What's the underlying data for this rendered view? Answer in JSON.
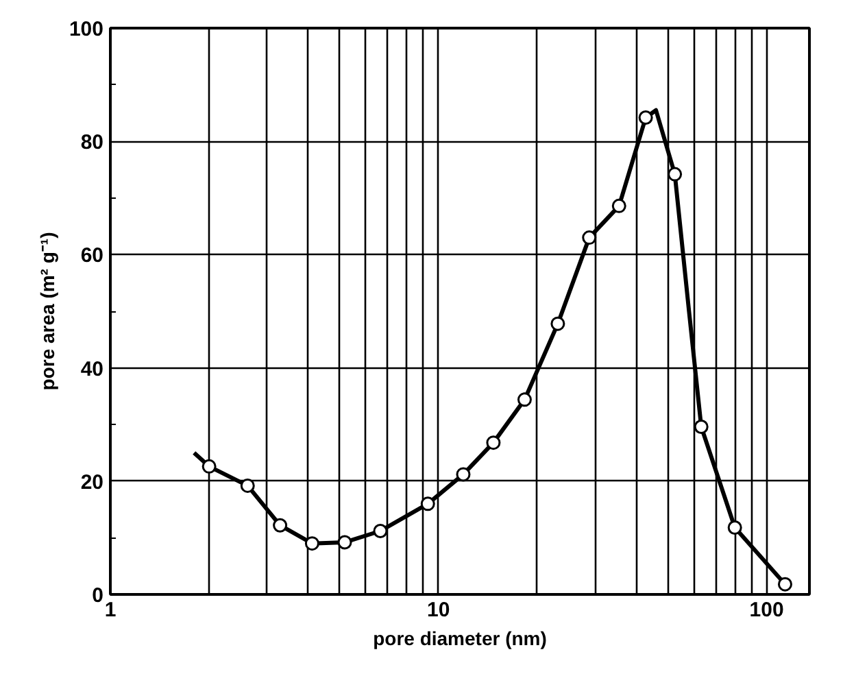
{
  "chart_data": {
    "type": "line",
    "xlabel": "pore diameter (nm)",
    "ylabel": "pore area (m² g⁻¹)",
    "log": "x",
    "xlim": [
      1,
      135
    ],
    "xticks": [
      1,
      10,
      100
    ],
    "ylim": [
      0,
      100
    ],
    "yticks": [
      0,
      20,
      40,
      60,
      80,
      100
    ],
    "grid": true,
    "series": [
      {
        "color": "#000000",
        "marker": "none",
        "line_style": "solid",
        "x": [
          1.8,
          2.0,
          2.62,
          3.29,
          4.12,
          5.18,
          6.65,
          9.28,
          11.9,
          14.7,
          18.3,
          23.1,
          28.8,
          35.5,
          42.8,
          46,
          52.5,
          58,
          63.2,
          80,
          113.8
        ],
        "values": [
          25,
          22.6,
          19.2,
          12.2,
          9,
          9.2,
          11.2,
          16,
          21.2,
          26.8,
          34.4,
          47.8,
          63,
          68.6,
          84.2,
          85.5,
          74.2,
          50,
          29.6,
          11.8,
          1.8
        ]
      },
      {
        "type": "scatter",
        "color": "#000000",
        "marker": "circle",
        "x": [
          2.0,
          2.62,
          3.29,
          4.12,
          5.18,
          6.65,
          9.28,
          11.9,
          14.7,
          18.3,
          23.1,
          28.8,
          35.5,
          42.8,
          52.5,
          63.2,
          80,
          113.8
        ],
        "values": [
          22.6,
          19.2,
          12.2,
          9,
          9.2,
          11.2,
          16,
          21.2,
          26.8,
          34.4,
          47.8,
          63,
          68.6,
          84.2,
          74.2,
          29.6,
          11.8,
          1.8
        ]
      }
    ]
  }
}
